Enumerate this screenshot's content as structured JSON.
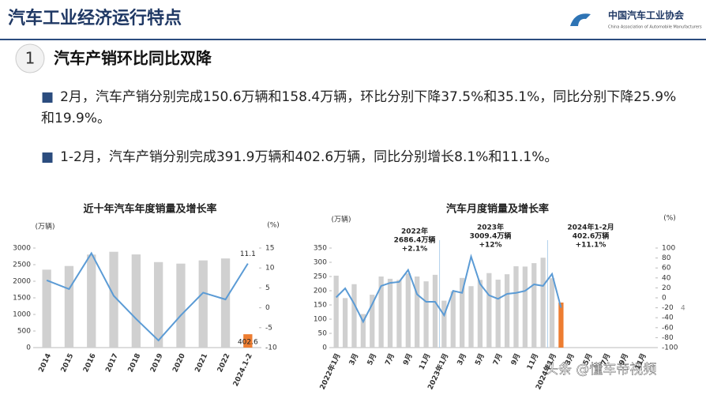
{
  "header": {
    "title": "汽车工业经济运行特点",
    "logo": "中国汽车工业协会",
    "logo_en": "China Association of Automobile Manufacturers"
  },
  "section": {
    "number": "1",
    "title": "汽车产销环比同比双降"
  },
  "bullets": [
    "2月，汽车产销分别完成150.6万辆和158.4万辆，环比分别下降37.5%和35.1%，同比分别下降25.9%和19.9%。",
    "1-2月，汽车产销分别完成391.9万辆和402.6万辆，同比分别增长8.1%和11.1%。"
  ],
  "page_number": "4",
  "watermark": "头条 @懂车帝视频",
  "chart_data": [
    {
      "type": "bar",
      "title": "近十年汽车年度销量及增长率",
      "y_label": "(万辆)",
      "y2_label": "(%)",
      "categories": [
        "2014",
        "2015",
        "2016",
        "2017",
        "2018",
        "2019",
        "2020",
        "2021",
        "2022",
        "2024.1-2"
      ],
      "series": [
        {
          "type": "bar",
          "color": "#d0d0d0",
          "colors": [
            "#d0d0d0",
            "#d0d0d0",
            "#d0d0d0",
            "#d0d0d0",
            "#d0d0d0",
            "#d0d0d0",
            "#d0d0d0",
            "#d0d0d0",
            "#d0d0d0",
            "#ed7d31"
          ],
          "values": [
            2349,
            2460,
            2803,
            2888,
            2808,
            2577,
            2531,
            2628,
            2686,
            402.6
          ],
          "value_labels": [
            null,
            null,
            null,
            null,
            null,
            null,
            null,
            null,
            null,
            "402.6"
          ]
        },
        {
          "type": "line",
          "axis": "y2",
          "color": "#5b9bd5",
          "values": [
            6.9,
            4.7,
            13.7,
            3.0,
            -2.8,
            -8.2,
            -1.9,
            3.8,
            2.1,
            11.1
          ],
          "value_labels": [
            null,
            null,
            null,
            null,
            null,
            null,
            null,
            null,
            null,
            "11.1"
          ]
        }
      ],
      "ylim": [
        0,
        3000
      ],
      "yticks": [
        0,
        500,
        1000,
        1500,
        2000,
        2500,
        3000
      ],
      "y2lim": [
        -10,
        15
      ],
      "y2ticks": [
        -10,
        -5,
        0,
        5,
        10,
        15
      ]
    },
    {
      "type": "bar",
      "title": "汽车月度销量及增长率",
      "y_label": "(万辆)",
      "y2_label": "(%)",
      "categories": [
        "2022年1月",
        null,
        "3月",
        null,
        "5月",
        null,
        "7月",
        null,
        "9月",
        null,
        "11月",
        null,
        "2023年1月",
        null,
        "3月",
        null,
        "5月",
        null,
        "7月",
        null,
        "9月",
        null,
        "11月",
        null,
        "2024年1月",
        null,
        "3月",
        null,
        "5月",
        null,
        "7月",
        null,
        "9月",
        null,
        "11月",
        null
      ],
      "series": [
        {
          "type": "bar",
          "color": "#d0d0d0",
          "colors": [
            "#d0d0d0",
            "#d0d0d0",
            "#d0d0d0",
            "#d0d0d0",
            "#d0d0d0",
            "#d0d0d0",
            "#d0d0d0",
            "#d0d0d0",
            "#d0d0d0",
            "#d0d0d0",
            "#d0d0d0",
            "#d0d0d0",
            "#d0d0d0",
            "#d0d0d0",
            "#d0d0d0",
            "#d0d0d0",
            "#d0d0d0",
            "#d0d0d0",
            "#d0d0d0",
            "#d0d0d0",
            "#d0d0d0",
            "#d0d0d0",
            "#d0d0d0",
            "#d0d0d0",
            "#d0d0d0",
            "#ed7d31",
            null,
            null,
            null,
            null,
            null,
            null,
            null,
            null,
            null,
            null
          ],
          "values": [
            253,
            174,
            223,
            118,
            186,
            250,
            242,
            238,
            261,
            250,
            233,
            256,
            165,
            198,
            245,
            216,
            238,
            262,
            239,
            258,
            286,
            285,
            297,
            316,
            244,
            158.4,
            null,
            null,
            null,
            null,
            null,
            null,
            null,
            null,
            null,
            null
          ]
        },
        {
          "type": "line",
          "axis": "y2",
          "color": "#5b9bd5",
          "values": [
            1,
            19,
            -12,
            -48,
            -13,
            24,
            30,
            32,
            56,
            7,
            -8,
            -8,
            -35,
            14,
            10,
            83,
            28,
            5,
            -2,
            8,
            10,
            14,
            27,
            24,
            48,
            -19.9,
            null,
            null,
            null,
            null,
            null,
            null,
            null,
            null,
            null,
            null
          ]
        }
      ],
      "ylim": [
        0,
        350
      ],
      "yticks": [
        0,
        50,
        100,
        150,
        200,
        250,
        300,
        350
      ],
      "y2lim": [
        -100,
        100
      ],
      "y2ticks": [
        -100,
        -80,
        -60,
        -40,
        -20,
        0,
        20,
        40,
        60,
        80,
        100
      ],
      "annotations": [
        {
          "lines": [
            "2022年",
            "2686.4万辆",
            "+2.1%"
          ]
        },
        {
          "lines": [
            "2023年",
            "3009.4万辆",
            "+12%"
          ]
        },
        {
          "lines": [
            "2024年1-2月",
            "402.6万辆",
            "+11.1%"
          ]
        }
      ]
    }
  ]
}
